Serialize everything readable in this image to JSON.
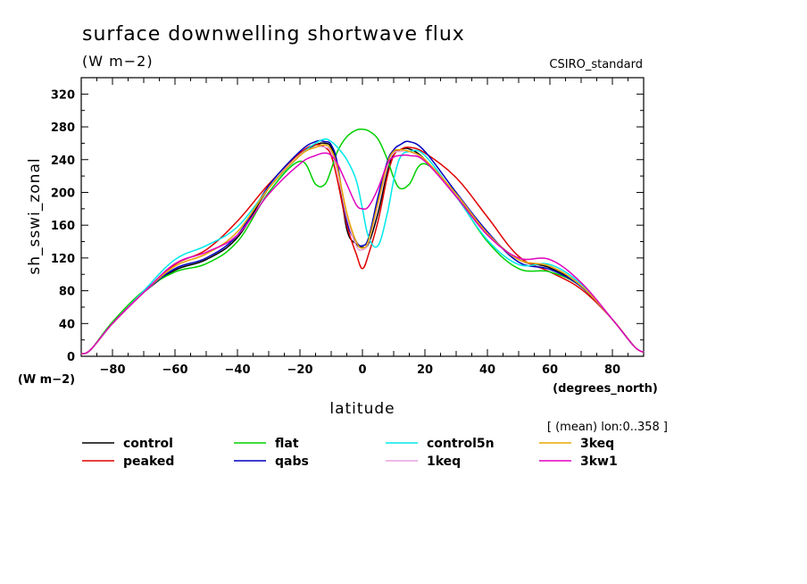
{
  "chart_data": {
    "type": "line",
    "title": "surface downwelling shortwave flux",
    "units": "(W m−2)",
    "model_label": "CSIRO_standard",
    "xlabel": "latitude",
    "ylabel": "sh_sswi_zonal",
    "x_units": "(degrees_north)",
    "y_units": "(W m−2)",
    "subset_note": "[ (mean) lon:0..358 ]",
    "xlim": [
      -90,
      90
    ],
    "ylim": [
      0,
      340
    ],
    "xticks": [
      -80,
      -60,
      -40,
      -20,
      0,
      20,
      40,
      60,
      80
    ],
    "yticks": [
      0,
      40,
      80,
      120,
      160,
      200,
      240,
      280,
      320
    ],
    "grid": false,
    "legend_position": "bottom",
    "series": [
      {
        "name": "control",
        "color": "#000000",
        "x": [
          -90,
          -87,
          -80,
          -70,
          -60,
          -50,
          -40,
          -30,
          -20,
          -15,
          -12,
          -10,
          -8,
          -5,
          -2,
          0,
          2,
          5,
          8,
          10,
          12,
          15,
          20,
          30,
          40,
          50,
          60,
          70,
          80,
          87,
          90
        ],
        "y": [
          3,
          8,
          40,
          78,
          105,
          118,
          145,
          205,
          245,
          258,
          260,
          255,
          230,
          155,
          137,
          133,
          138,
          175,
          225,
          248,
          252,
          253,
          240,
          195,
          150,
          118,
          108,
          85,
          45,
          12,
          5
        ]
      },
      {
        "name": "peaked",
        "color": "#e00000",
        "x": [
          -90,
          -87,
          -80,
          -70,
          -60,
          -50,
          -40,
          -30,
          -20,
          -15,
          -12,
          -10,
          -8,
          -5,
          -2,
          0,
          2,
          5,
          8,
          10,
          12,
          15,
          20,
          30,
          40,
          50,
          60,
          70,
          80,
          87,
          90
        ],
        "y": [
          3,
          8,
          40,
          78,
          112,
          130,
          165,
          210,
          248,
          258,
          255,
          245,
          215,
          160,
          125,
          107,
          125,
          165,
          220,
          245,
          252,
          255,
          248,
          218,
          170,
          122,
          103,
          82,
          45,
          12,
          5
        ]
      },
      {
        "name": "flat",
        "color": "#00d000",
        "x": [
          -90,
          -87,
          -80,
          -70,
          -60,
          -50,
          -40,
          -30,
          -20,
          -15,
          -12,
          -10,
          -8,
          -5,
          -2,
          0,
          2,
          5,
          8,
          10,
          12,
          15,
          20,
          30,
          40,
          50,
          60,
          70,
          80,
          87,
          90
        ],
        "y": [
          3,
          8,
          42,
          80,
          103,
          113,
          140,
          200,
          238,
          210,
          210,
          228,
          250,
          268,
          276,
          277,
          275,
          265,
          240,
          218,
          205,
          210,
          235,
          195,
          140,
          107,
          103,
          85,
          45,
          12,
          5
        ]
      },
      {
        "name": "qabs",
        "color": "#0000c0",
        "x": [
          -90,
          -87,
          -80,
          -70,
          -60,
          -50,
          -40,
          -30,
          -20,
          -15,
          -12,
          -10,
          -8,
          -5,
          -2,
          0,
          2,
          5,
          8,
          10,
          12,
          15,
          20,
          30,
          40,
          50,
          60,
          70,
          80,
          87,
          90
        ],
        "y": [
          3,
          8,
          40,
          78,
          107,
          120,
          148,
          208,
          250,
          262,
          262,
          258,
          235,
          165,
          140,
          135,
          145,
          195,
          238,
          252,
          258,
          262,
          250,
          200,
          152,
          115,
          106,
          85,
          45,
          12,
          5
        ]
      },
      {
        "name": "control5n",
        "color": "#00e8e8",
        "x": [
          -90,
          -87,
          -80,
          -70,
          -60,
          -50,
          -40,
          -30,
          -20,
          -15,
          -12,
          -10,
          -8,
          -5,
          -2,
          0,
          2,
          5,
          8,
          10,
          12,
          15,
          20,
          30,
          40,
          50,
          60,
          70,
          80,
          87,
          90
        ],
        "y": [
          3,
          8,
          40,
          80,
          118,
          135,
          158,
          205,
          245,
          260,
          265,
          262,
          255,
          240,
          215,
          180,
          145,
          135,
          175,
          215,
          242,
          250,
          245,
          195,
          142,
          112,
          112,
          88,
          45,
          12,
          5
        ]
      },
      {
        "name": "1keq",
        "color": "#e8a0e0",
        "x": [
          -90,
          -87,
          -80,
          -70,
          -60,
          -50,
          -40,
          -30,
          -20,
          -15,
          -12,
          -10,
          -8,
          -5,
          -2,
          0,
          2,
          5,
          8,
          10,
          12,
          15,
          20,
          30,
          40,
          50,
          60,
          70,
          80,
          87,
          90
        ],
        "y": [
          3,
          8,
          40,
          78,
          110,
          125,
          152,
          205,
          245,
          255,
          255,
          250,
          225,
          170,
          135,
          130,
          140,
          185,
          232,
          248,
          250,
          250,
          238,
          198,
          150,
          118,
          110,
          86,
          45,
          12,
          5
        ]
      },
      {
        "name": "3keq",
        "color": "#e8a800",
        "x": [
          -90,
          -87,
          -80,
          -70,
          -60,
          -50,
          -40,
          -30,
          -20,
          -15,
          -12,
          -10,
          -8,
          -5,
          -2,
          0,
          2,
          5,
          8,
          10,
          12,
          15,
          20,
          30,
          40,
          50,
          60,
          70,
          80,
          87,
          90
        ],
        "y": [
          3,
          8,
          40,
          78,
          110,
          125,
          152,
          205,
          245,
          255,
          258,
          252,
          230,
          175,
          140,
          132,
          142,
          188,
          235,
          250,
          252,
          250,
          240,
          198,
          150,
          118,
          110,
          86,
          45,
          12,
          5
        ]
      },
      {
        "name": "3kw1",
        "color": "#e000c0",
        "x": [
          -90,
          -87,
          -80,
          -70,
          -60,
          -50,
          -40,
          -30,
          -20,
          -15,
          -12,
          -10,
          -8,
          -5,
          -2,
          0,
          2,
          5,
          8,
          10,
          12,
          15,
          20,
          30,
          40,
          50,
          60,
          70,
          80,
          87,
          90
        ],
        "y": [
          3,
          8,
          40,
          78,
          113,
          127,
          148,
          198,
          235,
          245,
          248,
          245,
          235,
          210,
          185,
          180,
          183,
          205,
          235,
          243,
          245,
          245,
          238,
          195,
          148,
          120,
          118,
          90,
          45,
          12,
          5
        ]
      }
    ]
  }
}
